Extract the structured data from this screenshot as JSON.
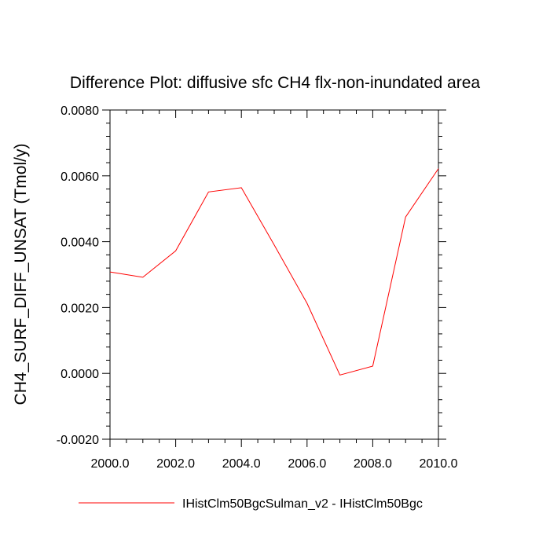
{
  "chart_data": {
    "type": "line",
    "title": "Difference Plot: diffusive sfc CH4 flx-non-inundated area",
    "xlabel": "",
    "ylabel": "CH4_SURF_DIFF_UNSAT  (Tmol/y)",
    "xlim": [
      2000,
      2010
    ],
    "ylim": [
      -0.002,
      0.008
    ],
    "x_ticks": [
      2000,
      2002,
      2004,
      2006,
      2008,
      2010
    ],
    "x_tick_labels": [
      "2000.0",
      "2002.0",
      "2004.0",
      "2006.0",
      "2008.0",
      "2010.0"
    ],
    "y_ticks": [
      -0.002,
      0.0,
      0.002,
      0.004,
      0.006,
      0.008
    ],
    "y_tick_labels": [
      "-0.0020",
      "0.0000",
      "0.0020",
      "0.0040",
      "0.0060",
      "0.0080"
    ],
    "grid": false,
    "legend_position": "bottom",
    "series": [
      {
        "name": "IHistClm50BgcSulman_v2 - IHistClm50Bgc",
        "color": "#ff0000",
        "x": [
          2000,
          2001,
          2002,
          2003,
          2004,
          2005,
          2006,
          2007,
          2008,
          2009,
          2010
        ],
        "values": [
          0.00308,
          0.00292,
          0.00372,
          0.00551,
          0.00564,
          0.0039,
          0.00213,
          -5e-05,
          0.00022,
          0.00475,
          0.00622
        ]
      }
    ]
  }
}
